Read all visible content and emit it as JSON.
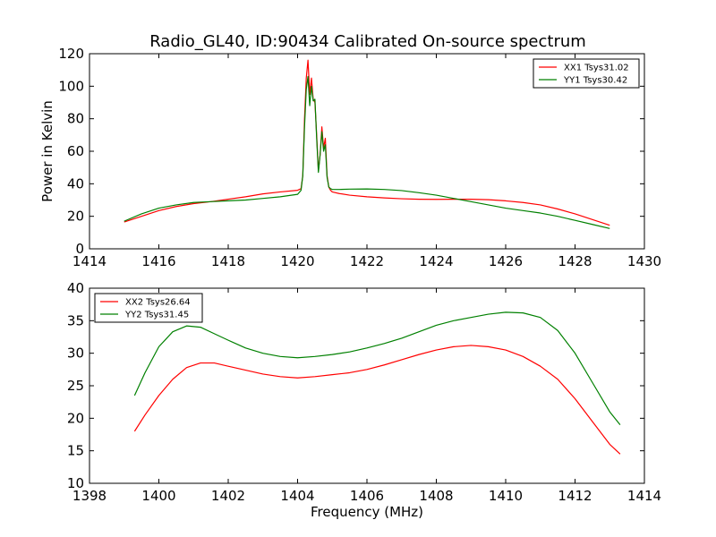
{
  "title": "Radio_GL40, ID:90434 Calibrated On-source spectrum",
  "chart_data": [
    {
      "type": "line",
      "title": "Radio_GL40, ID:90434 Calibrated On-source spectrum",
      "xlabel": "",
      "ylabel": "Power in Kelvin",
      "xlim": [
        1414,
        1430
      ],
      "ylim": [
        0,
        120
      ],
      "xticks": [
        1414,
        1416,
        1418,
        1420,
        1422,
        1424,
        1426,
        1428,
        1430
      ],
      "yticks": [
        0,
        20,
        40,
        60,
        80,
        100,
        120
      ],
      "grid": false,
      "legend_position": "top-right",
      "series": [
        {
          "name": "XX1 Tsys31.02",
          "color": "#ff0000",
          "x": [
            1415.0,
            1415.5,
            1416.0,
            1416.5,
            1417.0,
            1417.5,
            1418.0,
            1418.5,
            1419.0,
            1419.5,
            1420.0,
            1420.1,
            1420.15,
            1420.2,
            1420.25,
            1420.3,
            1420.35,
            1420.4,
            1420.45,
            1420.5,
            1420.55,
            1420.6,
            1420.65,
            1420.7,
            1420.75,
            1420.8,
            1420.85,
            1420.9,
            1420.95,
            1421.0,
            1421.2,
            1421.5,
            1422.0,
            1422.5,
            1423.0,
            1423.5,
            1424.0,
            1424.5,
            1425.0,
            1425.5,
            1426.0,
            1426.5,
            1427.0,
            1427.5,
            1428.0,
            1428.5,
            1429.0
          ],
          "y": [
            16.5,
            20.0,
            23.5,
            26.0,
            27.8,
            29.0,
            30.5,
            32.0,
            33.8,
            35.0,
            36.0,
            37.0,
            45.0,
            80.0,
            105.0,
            116.0,
            95.0,
            105.0,
            92.0,
            90.0,
            70.0,
            48.0,
            58.0,
            75.0,
            62.0,
            68.0,
            45.0,
            38.0,
            36.0,
            35.0,
            34.0,
            33.0,
            32.0,
            31.3,
            30.8,
            30.5,
            30.4,
            30.5,
            30.5,
            30.2,
            29.5,
            28.5,
            27.0,
            24.5,
            21.5,
            18.0,
            14.5
          ]
        },
        {
          "name": "YY1 Tsys30.42",
          "color": "#008000",
          "x": [
            1415.0,
            1415.5,
            1416.0,
            1416.5,
            1417.0,
            1417.5,
            1418.0,
            1418.5,
            1419.0,
            1419.5,
            1420.0,
            1420.1,
            1420.15,
            1420.2,
            1420.25,
            1420.3,
            1420.35,
            1420.4,
            1420.45,
            1420.5,
            1420.55,
            1420.6,
            1420.65,
            1420.7,
            1420.75,
            1420.8,
            1420.85,
            1420.9,
            1420.95,
            1421.0,
            1421.2,
            1421.5,
            1422.0,
            1422.5,
            1423.0,
            1423.5,
            1424.0,
            1424.5,
            1425.0,
            1425.5,
            1426.0,
            1426.5,
            1427.0,
            1427.5,
            1428.0,
            1428.5,
            1429.0
          ],
          "y": [
            17.0,
            21.5,
            25.0,
            27.0,
            28.5,
            29.0,
            29.5,
            30.0,
            31.0,
            32.0,
            33.5,
            36.0,
            45.0,
            75.0,
            98.0,
            106.0,
            88.0,
            100.0,
            91.0,
            92.0,
            68.0,
            47.0,
            58.0,
            72.0,
            60.0,
            64.0,
            44.0,
            38.0,
            37.0,
            36.5,
            36.5,
            36.7,
            36.8,
            36.5,
            35.8,
            34.5,
            33.0,
            31.0,
            29.0,
            27.0,
            25.0,
            23.5,
            22.0,
            20.0,
            17.5,
            15.0,
            12.5
          ]
        }
      ]
    },
    {
      "type": "line",
      "title": "",
      "xlabel": "Frequency (MHz)",
      "ylabel": "",
      "xlim": [
        1398,
        1414
      ],
      "ylim": [
        10,
        40
      ],
      "xticks": [
        1398,
        1400,
        1402,
        1404,
        1406,
        1408,
        1410,
        1412,
        1414
      ],
      "yticks": [
        10,
        15,
        20,
        25,
        30,
        35,
        40
      ],
      "grid": false,
      "legend_position": "top-left",
      "series": [
        {
          "name": "XX2 Tsys26.64",
          "color": "#ff0000",
          "x": [
            1399.3,
            1399.6,
            1400.0,
            1400.4,
            1400.8,
            1401.2,
            1401.6,
            1402.0,
            1402.5,
            1403.0,
            1403.5,
            1404.0,
            1404.5,
            1405.0,
            1405.5,
            1406.0,
            1406.5,
            1407.0,
            1407.5,
            1408.0,
            1408.5,
            1409.0,
            1409.5,
            1410.0,
            1410.5,
            1411.0,
            1411.5,
            1412.0,
            1412.5,
            1413.0,
            1413.3
          ],
          "y": [
            18.0,
            20.5,
            23.5,
            26.0,
            27.8,
            28.5,
            28.5,
            28.0,
            27.4,
            26.8,
            26.4,
            26.2,
            26.4,
            26.7,
            27.0,
            27.5,
            28.2,
            29.0,
            29.8,
            30.5,
            31.0,
            31.2,
            31.0,
            30.5,
            29.5,
            28.0,
            26.0,
            23.0,
            19.5,
            16.0,
            14.5
          ]
        },
        {
          "name": "YY2 Tsys31.45",
          "color": "#008000",
          "x": [
            1399.3,
            1399.6,
            1400.0,
            1400.4,
            1400.8,
            1401.2,
            1401.6,
            1402.0,
            1402.5,
            1403.0,
            1403.5,
            1404.0,
            1404.5,
            1405.0,
            1405.5,
            1406.0,
            1406.5,
            1407.0,
            1407.5,
            1408.0,
            1408.5,
            1409.0,
            1409.5,
            1410.0,
            1410.5,
            1411.0,
            1411.5,
            1412.0,
            1412.5,
            1413.0,
            1413.3
          ],
          "y": [
            23.5,
            27.0,
            31.0,
            33.3,
            34.2,
            34.0,
            33.0,
            32.0,
            30.8,
            30.0,
            29.5,
            29.3,
            29.5,
            29.8,
            30.2,
            30.8,
            31.5,
            32.3,
            33.3,
            34.3,
            35.0,
            35.5,
            36.0,
            36.3,
            36.2,
            35.5,
            33.5,
            30.0,
            25.5,
            21.0,
            19.0
          ]
        }
      ]
    }
  ]
}
